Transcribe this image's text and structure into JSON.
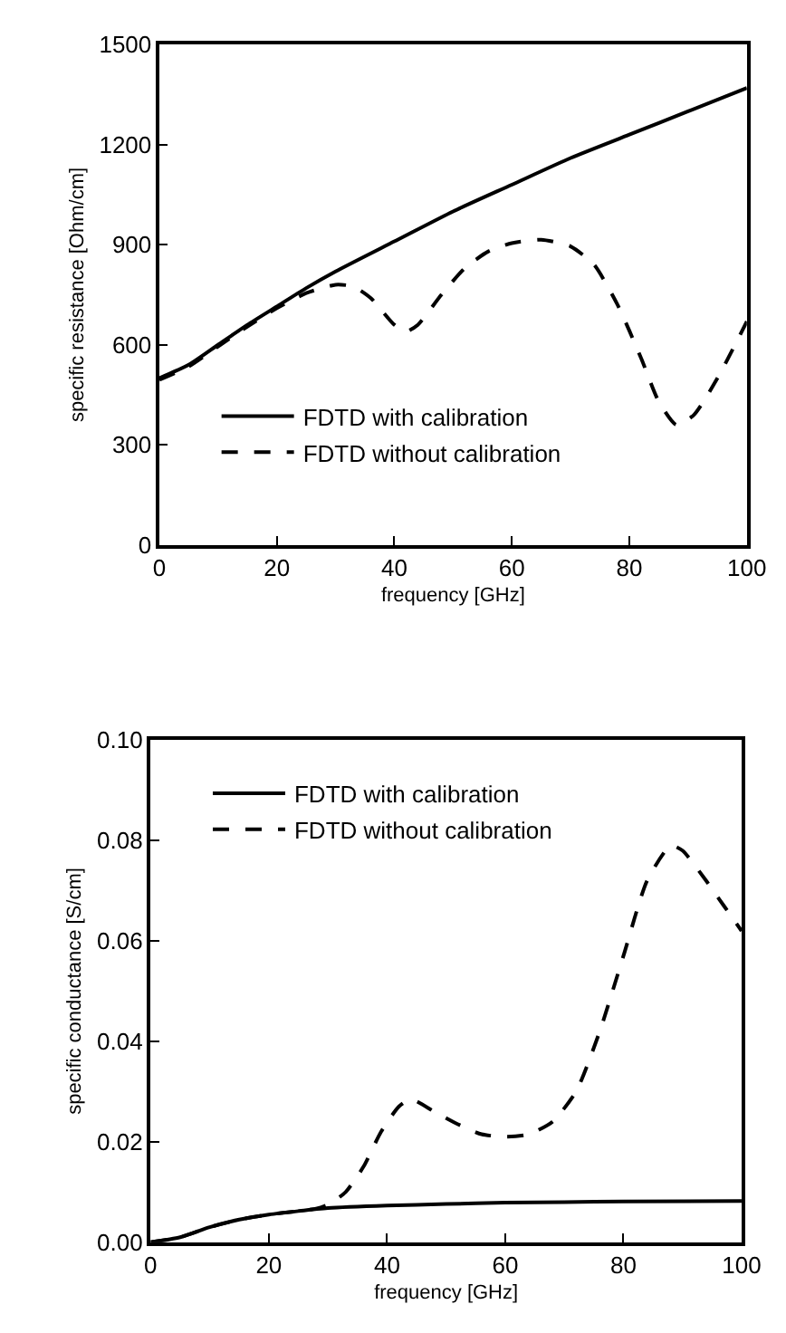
{
  "chart_data": [
    {
      "type": "line",
      "xlabel": "frequency [GHz]",
      "ylabel": "specific resistance [Ohm/cm]",
      "xlim": [
        0,
        100
      ],
      "xticks": [
        0,
        20,
        40,
        60,
        80,
        100
      ],
      "ylim": [
        0,
        1500
      ],
      "yticks": [
        0,
        300,
        600,
        900,
        1200,
        1500
      ],
      "legend": "bottom left",
      "marker": "none",
      "series": [
        {
          "name": "FDTD with calibration",
          "color": "#000000",
          "line_style": "solid",
          "x": [
            0,
            5,
            10,
            15,
            20,
            25,
            30,
            40,
            50,
            60,
            70,
            80,
            90,
            100
          ],
          "values": [
            500,
            540,
            600,
            660,
            715,
            770,
            820,
            910,
            1000,
            1080,
            1160,
            1230,
            1300,
            1370
          ]
        },
        {
          "name": "FDTD without calibration",
          "color": "#000000",
          "line_style": "dashed",
          "x": [
            0,
            5,
            10,
            15,
            20,
            25,
            30,
            33,
            36,
            40,
            42,
            44,
            48,
            52,
            56,
            60,
            65,
            70,
            74,
            78,
            82,
            85,
            88,
            91,
            95,
            100
          ],
          "values": [
            495,
            535,
            595,
            655,
            710,
            755,
            780,
            775,
            740,
            660,
            640,
            660,
            750,
            830,
            880,
            905,
            915,
            895,
            840,
            720,
            560,
            430,
            360,
            390,
            500,
            670
          ]
        }
      ]
    },
    {
      "type": "line",
      "xlabel": "frequency [GHz]",
      "ylabel": "specific conductance [S/cm]",
      "xlim": [
        0,
        100
      ],
      "xticks": [
        0,
        20,
        40,
        60,
        80,
        100
      ],
      "ylim": [
        0,
        0.1
      ],
      "yticks": [
        {
          "value": 0,
          "label": "0.00"
        },
        {
          "value": 0.02,
          "label": "0.02"
        },
        {
          "value": 0.04,
          "label": "0.04"
        },
        {
          "value": 0.06,
          "label": "0.06"
        },
        {
          "value": 0.08,
          "label": "0.08"
        },
        {
          "value": 0.1,
          "label": "0.10"
        }
      ],
      "legend": "top left",
      "marker": "none",
      "series": [
        {
          "name": "FDTD with calibration",
          "color": "#000000",
          "line_style": "solid",
          "x": [
            0,
            5,
            10,
            15,
            20,
            25,
            30,
            40,
            50,
            60,
            70,
            80,
            100
          ],
          "values": [
            0,
            0.001,
            0.003,
            0.0045,
            0.0055,
            0.0062,
            0.0068,
            0.0073,
            0.0076,
            0.0079,
            0.008,
            0.0081,
            0.0082
          ]
        },
        {
          "name": "FDTD without calibration",
          "color": "#000000",
          "line_style": "dashed",
          "x": [
            0,
            5,
            10,
            15,
            20,
            25,
            28,
            30,
            33,
            36,
            39,
            42,
            44,
            48,
            52,
            56,
            60,
            64,
            68,
            72,
            76,
            80,
            84,
            88,
            90,
            94,
            97,
            100
          ],
          "values": [
            0,
            0.001,
            0.003,
            0.0045,
            0.0055,
            0.0062,
            0.0067,
            0.0075,
            0.01,
            0.015,
            0.022,
            0.027,
            0.0285,
            0.026,
            0.0235,
            0.0215,
            0.021,
            0.0215,
            0.024,
            0.03,
            0.042,
            0.057,
            0.072,
            0.079,
            0.078,
            0.072,
            0.067,
            0.062
          ]
        }
      ]
    }
  ]
}
